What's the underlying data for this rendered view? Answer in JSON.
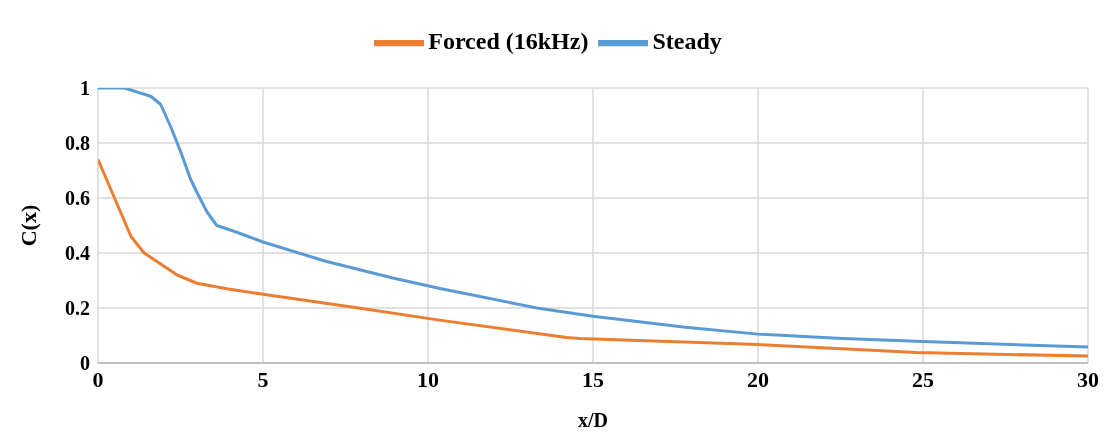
{
  "chart_data": {
    "type": "line",
    "xlabel": "x/D",
    "ylabel": "C(x)",
    "xlim": [
      0,
      30
    ],
    "xticks": [
      0,
      5,
      10,
      15,
      20,
      25,
      30
    ],
    "ylim": [
      0,
      1
    ],
    "yticks": [
      0,
      0.2,
      0.4,
      0.6,
      0.8,
      1
    ],
    "grid": true,
    "legend": "top",
    "marker": "none",
    "line_style": "solid",
    "series": [
      {
        "name": "Steady",
        "color": "#5b9bd5",
        "x": [
          0,
          0.8,
          1.6,
          1.9,
          2.2,
          2.5,
          2.8,
          3.0,
          3.3,
          3.6,
          4.1,
          5,
          6.9,
          8.9,
          10.4,
          13.3,
          15,
          17.8,
          20,
          22.4,
          25,
          30
        ],
        "values": [
          1,
          1,
          0.97,
          0.94,
          0.86,
          0.77,
          0.67,
          0.62,
          0.55,
          0.5,
          0.48,
          0.44,
          0.37,
          0.31,
          0.27,
          0.2,
          0.17,
          0.13,
          0.105,
          0.09,
          0.078,
          0.058
        ]
      },
      {
        "name": "Forced (16kHz)",
        "color": "#ed7d31",
        "x": [
          0,
          0.5,
          1.0,
          1.4,
          1.9,
          2.4,
          3.0,
          3.9,
          5,
          7.9,
          10.4,
          14.2,
          14.6,
          20,
          24.8,
          30
        ],
        "values": [
          0.74,
          0.6,
          0.46,
          0.4,
          0.36,
          0.32,
          0.29,
          0.27,
          0.25,
          0.2,
          0.155,
          0.093,
          0.089,
          0.067,
          0.038,
          0.025
        ]
      }
    ]
  }
}
